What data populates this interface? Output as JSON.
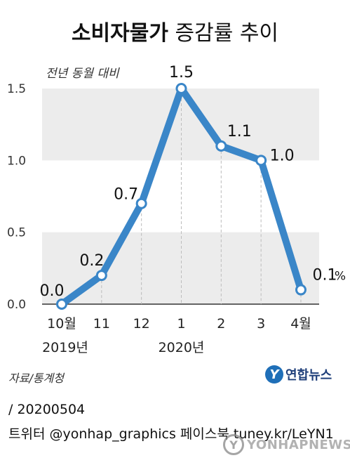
{
  "title_bold": "소비자물가",
  "title_light": "증감률 추이",
  "subtitle": "전년 동월 대비",
  "unit": "%",
  "source": "자료/통계청",
  "logo": {
    "mark": "Y",
    "text": "연합뉴스"
  },
  "footer": {
    "line1": "/ 20200504",
    "line2": "트위터 @yonhap_graphics  페이스북 tuney.kr/LeYN1"
  },
  "watermark": "YONHAPNEWS",
  "colors": {
    "line": "#3a86c8",
    "band": "#ececec",
    "text": "#222222"
  },
  "chart_data": {
    "type": "line",
    "categories": [
      "10월",
      "11",
      "12",
      "1",
      "2",
      "3",
      "4월"
    ],
    "year_labels": [
      {
        "text": "2019년",
        "category_index": 0
      },
      {
        "text": "2020년",
        "category_index": 3
      }
    ],
    "series": [
      {
        "values": [
          0.0,
          0.2,
          0.7,
          1.5,
          1.1,
          1.0,
          0.1
        ],
        "labels": [
          "0.0",
          "0.2",
          "0.7",
          "1.5",
          "1.1",
          "1.0",
          "0.1"
        ]
      }
    ],
    "yticks": [
      "0.0",
      "0.5",
      "1.0",
      "1.5"
    ],
    "ylim": [
      0,
      1.5
    ],
    "grid": "alternating horizontal bands, dashed verticals"
  }
}
